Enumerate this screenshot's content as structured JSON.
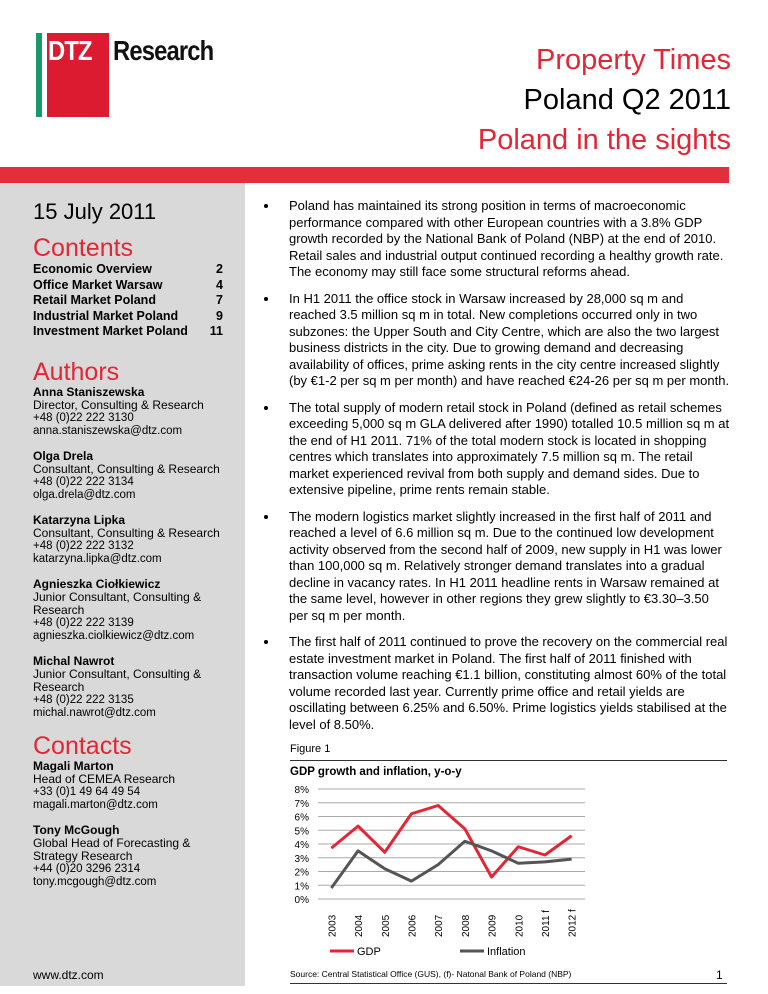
{
  "logo": {
    "text_left": "DTZ",
    "text_right": "Research",
    "colors": {
      "red": "#dc1a30",
      "green": "#1a9a6a"
    }
  },
  "header": {
    "line1": "Property Times",
    "line2": "Poland Q2 2011",
    "line3": "Poland in the sights"
  },
  "sidebar": {
    "date": "15 July 2011",
    "contents_title": "Contents",
    "contents": [
      {
        "label": "Economic Overview",
        "page": "2"
      },
      {
        "label": "Office Market Warsaw",
        "page": "4"
      },
      {
        "label": "Retail Market Poland",
        "page": "7"
      },
      {
        "label": "Industrial Market Poland",
        "page": "9"
      },
      {
        "label": "Investment Market Poland",
        "page": "11"
      }
    ],
    "authors_title": "Authors",
    "authors": [
      {
        "name": "Anna Staniszewska",
        "role": "Director, Consulting & Research",
        "phone": "+48 (0)22 222 3130",
        "email": "anna.staniszewska@dtz.com"
      },
      {
        "name": "Olga Drela",
        "role": "Consultant, Consulting & Research",
        "phone": "+48 (0)22 222 3134",
        "email": "olga.drela@dtz.com"
      },
      {
        "name": "Katarzyna Lipka",
        "role": "Consultant, Consulting & Research",
        "phone": "+48 (0)22 222 3132",
        "email": "katarzyna.lipka@dtz.com"
      },
      {
        "name": "Agnieszka Ciołkiewicz",
        "role": "Junior Consultant, Consulting & Research",
        "phone": "+48 (0)22 222 3139",
        "email": "agnieszka.ciolkiewicz@dtz.com"
      },
      {
        "name": "Michal Nawrot",
        "role": "Junior Consultant, Consulting & Research",
        "phone": "+48 (0)22 222 3135",
        "email": "michal.nawrot@dtz.com"
      }
    ],
    "contacts_title": "Contacts",
    "contacts": [
      {
        "name": "Magali Marton",
        "role": "Head of CEMEA Research",
        "phone": "+33 (0)1 49 64 49 54",
        "email": "magali.marton@dtz.com"
      },
      {
        "name": "Tony McGough",
        "role": "Global Head of Forecasting & Strategy Research",
        "phone": "+44 (0)20 3296 2314",
        "email": "tony.mcgough@dtz.com"
      }
    ]
  },
  "bullets": [
    "Poland has maintained its strong position in terms of macroeconomic performance compared with other European countries with a 3.8% GDP growth recorded by the National Bank of Poland (NBP) at the end of 2010. Retail sales and industrial output continued recording a healthy growth rate. The economy may still face some structural reforms ahead.",
    "In H1 2011 the office stock in Warsaw increased by 28,000 sq m and reached 3.5 million sq m in total. New completions occurred only in two subzones: the Upper South and City Centre, which are also the two largest business districts in the city. Due to growing demand and decreasing availability of offices, prime asking rents in the city centre increased slightly (by €1-2 per sq m per month) and have reached €24-26 per sq m per month.",
    "The total supply of modern retail stock in Poland (defined as retail schemes exceeding 5,000 sq m GLA delivered after 1990) totalled 10.5 million sq m at the end of H1 2011. 71% of the total modern stock is located in shopping centres which translates into approximately 7.5 million sq m. The retail market experienced revival from both supply and demand sides. Due to extensive pipeline, prime rents remain stable.",
    "The modern logistics market slightly increased in the first half of 2011 and reached a level of 6.6 million sq m. Due to the continued low development activity observed from the second half of 2009, new supply in H1 was lower than 100,000 sq m. Relatively stronger demand translates into a gradual decline in vacancy rates. In H1 2011 headline rents in Warsaw remained at the same level, however in other regions they grew slightly to €3.30–3.50 per sq m per month.",
    "The first half of 2011 continued to prove the recovery on the commercial real estate investment market in Poland. The first half of 2011 finished with transaction volume reaching €1.1 billion, constituting almost 60% of the total volume recorded last year. Currently prime office and retail yields are oscillating between 6.25% and 6.50%. Prime logistics yields stabilised at the level of 8.50%."
  ],
  "figure_label": "Figure 1",
  "chart_data": {
    "type": "line",
    "title": "GDP growth and inflation, y-o-y",
    "categories": [
      "2003",
      "2004",
      "2005",
      "2006",
      "2007",
      "2008",
      "2009",
      "2010",
      "2011 f",
      "2012 f"
    ],
    "series": [
      {
        "name": "GDP",
        "color": "#e32636",
        "values": [
          3.7,
          5.3,
          3.4,
          6.2,
          6.8,
          5.1,
          1.6,
          3.8,
          3.2,
          4.6
        ]
      },
      {
        "name": "Inflation",
        "color": "#555555",
        "values": [
          0.8,
          3.5,
          2.2,
          1.3,
          2.5,
          4.2,
          3.5,
          2.6,
          2.7,
          2.9
        ]
      }
    ],
    "yticks": [
      "0%",
      "1%",
      "2%",
      "3%",
      "4%",
      "5%",
      "6%",
      "7%",
      "8%"
    ],
    "ylim": [
      0,
      8
    ],
    "grid": true,
    "legend": "bottom"
  },
  "source": "Source: Central Statistical Office (GUS), (f)- Natonal Bank of Poland (NBP)",
  "footer": {
    "url": "www.dtz.com",
    "page": "1"
  }
}
